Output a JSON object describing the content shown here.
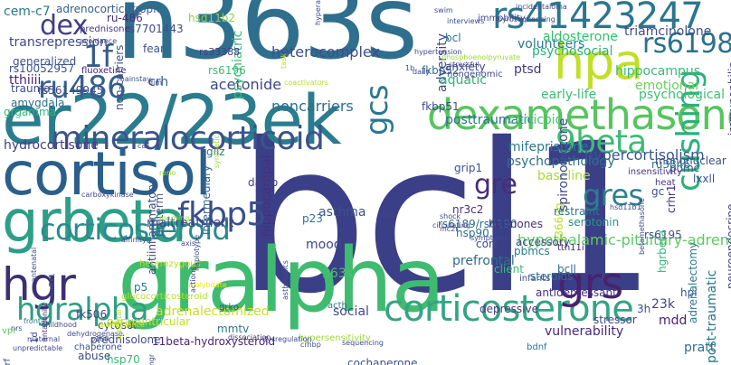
{
  "words": [
    {
      "text": "bcl1",
      "color": "#3b3f87"
    },
    {
      "text": "n363s",
      "color": "#2f6f8e"
    },
    {
      "text": "er22/23ek",
      "color": "#2a7c8e"
    },
    {
      "text": "cortisol",
      "color": "#2b5f8b"
    },
    {
      "text": "gralpha",
      "color": "#3fbb6f"
    },
    {
      "text": "grbeta",
      "color": "#2d9f86"
    },
    {
      "text": "hpa",
      "color": "#c0df26"
    },
    {
      "text": "dexamethasone",
      "color": "#58c45f"
    },
    {
      "text": "rs41423247",
      "color": "#2a768e"
    },
    {
      "text": "corticosterone",
      "color": "#35a482"
    },
    {
      "text": "mineralocorticoid",
      "color": "#3b538b"
    },
    {
      "text": "corticosteroid",
      "color": "#2a8a8c"
    },
    {
      "text": "hgr",
      "color": "#3d2f74"
    },
    {
      "text": "grs",
      "color": "#47236e"
    },
    {
      "text": "fkbp5",
      "color": "#3a4f8a"
    },
    {
      "text": "ru486",
      "color": "#35608d"
    },
    {
      "text": "dex",
      "color": "#423f85"
    },
    {
      "text": "1f",
      "color": "#365c8d"
    },
    {
      "text": "hgralpha",
      "color": "#2e9e85"
    },
    {
      "text": "9beta",
      "color": "#3dbb74"
    },
    {
      "text": "gcs",
      "color": "#2a788e"
    },
    {
      "text": "gre",
      "color": "#472c7a"
    },
    {
      "text": "gres",
      "color": "#2a7f8e"
    },
    {
      "text": "cushing",
      "color": "#2ab17a"
    },
    {
      "text": "rs6198",
      "color": "#2c718e"
    },
    {
      "text": "adrenocorticotropic",
      "color": "#34608d"
    },
    {
      "text": "transrepression",
      "color": "#3e4a89"
    },
    {
      "text": "hydrocortisone",
      "color": "#433d84"
    },
    {
      "text": "heterocomplex",
      "color": "#3d4d8a"
    },
    {
      "text": "noncarriers",
      "color": "#2e6e8e"
    },
    {
      "text": "acetonide",
      "color": "#404588"
    },
    {
      "text": "hypercortisolism",
      "color": "#3a548c"
    },
    {
      "text": "hypothalamic-pituitary-adrenal",
      "color": "#5ec962"
    },
    {
      "text": "maltreatment",
      "color": "#3e4a89"
    },
    {
      "text": "aldosterone",
      "color": "#2ec26d"
    },
    {
      "text": "triamcinolone",
      "color": "#3d4e8a"
    },
    {
      "text": "psychosocial",
      "color": "#2bb07f"
    },
    {
      "text": "hippocampus",
      "color": "#3aba76"
    },
    {
      "text": "emotional",
      "color": "#6ccd5a"
    },
    {
      "text": "psychological",
      "color": "#40bd72"
    },
    {
      "text": "early-life",
      "color": "#3fbc73"
    },
    {
      "text": "psychopathology",
      "color": "#2e6f8e"
    },
    {
      "text": "mifepristone",
      "color": "#2a788e"
    },
    {
      "text": "posttraumatic",
      "color": "#2d718e"
    },
    {
      "text": "corticoid",
      "color": "#4cc26c"
    },
    {
      "text": "baseline",
      "color": "#a8db34"
    },
    {
      "text": "fkbp51",
      "color": "#3e4c8a"
    },
    {
      "text": "fkbp52",
      "color": "#2e6d8e"
    },
    {
      "text": "adversity",
      "color": "#414487"
    },
    {
      "text": "psychiatric",
      "color": "#3aba76"
    },
    {
      "text": "aquatic",
      "color": "#2eb37c"
    },
    {
      "text": "ptsd",
      "color": "#453781"
    },
    {
      "text": "volunteers",
      "color": "#2a778e"
    },
    {
      "text": "bcl",
      "color": "#2c728e"
    },
    {
      "text": "anxiety",
      "color": "#404688"
    },
    {
      "text": "rs7701443",
      "color": "#3e4c8a"
    },
    {
      "text": "hsd11b2",
      "color": "#83d34b"
    },
    {
      "text": "rs33388",
      "color": "#443b84"
    },
    {
      "text": "rs6196",
      "color": "#3fbc73"
    },
    {
      "text": "fear",
      "color": "#3b528b"
    },
    {
      "text": "crh",
      "color": "#365d8d"
    },
    {
      "text": "ru-486",
      "color": "#472a7a"
    },
    {
      "text": "rs10052957",
      "color": "#3a548c"
    },
    {
      "text": "tthiiii",
      "color": "#482677"
    },
    {
      "text": "rs56149945",
      "color": "#3e4989"
    },
    {
      "text": "amygdala",
      "color": "#2e6f8e"
    },
    {
      "text": "trauma",
      "color": "#3d4d8a"
    },
    {
      "text": "grgamma",
      "color": "#31b57b"
    },
    {
      "text": "generalized",
      "color": "#3b528b"
    },
    {
      "text": "cem-c7",
      "color": "#2a788e"
    },
    {
      "text": "prednisone",
      "color": "#443983"
    },
    {
      "text": "fluoxetine",
      "color": "#482475"
    },
    {
      "text": "non-carriers",
      "color": "#3b518b"
    },
    {
      "text": "heat",
      "color": "#46317e"
    },
    {
      "text": "gilz",
      "color": "#2a7b8e"
    },
    {
      "text": "grip1",
      "color": "#3b518b"
    },
    {
      "text": "nr3c2",
      "color": "#472e7c"
    },
    {
      "text": "rs6189/rs6190",
      "color": "#2e6d8e"
    },
    {
      "text": "hsp90",
      "color": "#2e6f8e"
    },
    {
      "text": "a3669g",
      "color": "#bade28"
    },
    {
      "text": "spironolactone",
      "color": "#3e4a89"
    },
    {
      "text": "serotonin",
      "color": "#1f988b"
    },
    {
      "text": "restraint",
      "color": "#2b758e"
    },
    {
      "text": "rs6195",
      "color": "#3d4e8a"
    },
    {
      "text": "crhr1",
      "color": "#46307e"
    },
    {
      "text": "pomc",
      "color": "#3b528b"
    },
    {
      "text": "gc",
      "color": "#3d4e8a"
    },
    {
      "text": "ru3846",
      "color": "#2a768e"
    },
    {
      "text": "mononuclear",
      "color": "#3b518b"
    },
    {
      "text": "lxxll",
      "color": "#3a548c"
    },
    {
      "text": "insensitivity",
      "color": "#443983"
    },
    {
      "text": "immunophilin",
      "color": "#433e85"
    },
    {
      "text": "asthma",
      "color": "#3b518b"
    },
    {
      "text": "hippocampal",
      "color": "#472f7d"
    },
    {
      "text": "intermediary",
      "color": "#34618d"
    },
    {
      "text": "preterm",
      "color": "#3a548c"
    },
    {
      "text": "antiinflammatory",
      "color": "#3e4a89"
    },
    {
      "text": "danio",
      "color": "#433e85"
    },
    {
      "text": "p23",
      "color": "#2c728e"
    },
    {
      "text": "mood",
      "color": "#3f4788"
    },
    {
      "text": "hormones",
      "color": "#46327e"
    },
    {
      "text": "cort",
      "color": "#3e4c8a"
    },
    {
      "text": "accessory",
      "color": "#3e4989"
    },
    {
      "text": "pbmcs",
      "color": "#2a788e"
    },
    {
      "text": "client",
      "color": "#3aba76"
    },
    {
      "text": "bcll",
      "color": "#2e6e8e"
    },
    {
      "text": "tth11i",
      "color": "#482475"
    },
    {
      "text": "prefrontal",
      "color": "#2e6d8e"
    },
    {
      "text": "363s",
      "color": "#4ac16d"
    },
    {
      "text": "infants",
      "color": "#3b518b"
    },
    {
      "text": "steroids",
      "color": "#2e6d8e"
    },
    {
      "text": "antidepressant",
      "color": "#46307e"
    },
    {
      "text": "depressive",
      "color": "#453882"
    },
    {
      "text": "stressor",
      "color": "#3f4788"
    },
    {
      "text": "mdd",
      "color": "#482173"
    },
    {
      "text": "hpi",
      "color": "#3b528b"
    },
    {
      "text": "adrenalectomy",
      "color": "#2a788e"
    },
    {
      "text": "hgrbeta",
      "color": "#2db27d"
    },
    {
      "text": "23k",
      "color": "#3f4788"
    },
    {
      "text": "3h",
      "color": "#3b518b"
    },
    {
      "text": "pratt",
      "color": "#2e6d8e"
    },
    {
      "text": "post-traumatic",
      "color": "#2a788e"
    },
    {
      "text": "neuroendocrine",
      "color": "#3e4a89"
    },
    {
      "text": "vulnerability",
      "color": "#482979"
    },
    {
      "text": "bdnf",
      "color": "#2a768e"
    },
    {
      "text": "cochaperone",
      "color": "#3b528b"
    },
    {
      "text": "11beta-hydroxysteroid",
      "color": "#482475"
    },
    {
      "text": "adrenalectomized",
      "color": "#c8e020"
    },
    {
      "text": "mmtv",
      "color": "#2a788e"
    },
    {
      "text": "grko",
      "color": "#3b518b"
    },
    {
      "text": "social",
      "color": "#3e4a89"
    },
    {
      "text": "acth",
      "color": "#2a768e"
    },
    {
      "text": "prednisolone",
      "color": "#3e4c8a"
    },
    {
      "text": "hsp70",
      "color": "#3aba76"
    },
    {
      "text": "cytosol",
      "color": "#3e4a89"
    },
    {
      "text": "fk506",
      "color": "#404588"
    },
    {
      "text": "paraventricular",
      "color": "#c0df26"
    },
    {
      "text": "abuse",
      "color": "#3e4989"
    },
    {
      "text": "crf",
      "color": "#3b518b"
    },
    {
      "text": "chaperone",
      "color": "#3b518b"
    },
    {
      "text": "vpr",
      "color": "#5ec962"
    },
    {
      "text": "1d",
      "color": "#3f4788"
    },
    {
      "text": "p5",
      "color": "#2a788e"
    },
    {
      "text": "heterozygous",
      "color": "#b5de2b"
    },
    {
      "text": "glucocorticosteroid",
      "color": "#b5de2b"
    },
    {
      "text": "hypersensitivity",
      "color": "#a0da39"
    },
    {
      "text": "adolescence",
      "color": "#bddf26"
    },
    {
      "text": "molybdate",
      "color": "#e7e419"
    },
    {
      "text": "asthmatics",
      "color": "#3e4a89"
    },
    {
      "text": "mgr",
      "color": "#3e4a89"
    },
    {
      "text": "dissociation",
      "color": "#46317e"
    },
    {
      "text": "crhbp",
      "color": "#3b528b"
    },
    {
      "text": "p160",
      "color": "#3e4a89"
    },
    {
      "text": "nrs",
      "color": "#3e4a89"
    },
    {
      "text": "childhood",
      "color": "#3e4a89"
    },
    {
      "text": "frontal",
      "color": "#2a788e"
    },
    {
      "text": "dehydrogenase",
      "color": "#3e4a89"
    },
    {
      "text": "unpredictable",
      "color": "#3e4a89"
    },
    {
      "text": "antagonist",
      "color": "#46317e"
    },
    {
      "text": "morning",
      "color": "#a0da39"
    },
    {
      "text": "prenatal",
      "color": "#b5de2b"
    },
    {
      "text": "affinity",
      "color": "#3e4a89"
    },
    {
      "text": "maternal",
      "color": "#3e4a89"
    },
    {
      "text": "antenatal",
      "color": "#3e4a89"
    },
    {
      "text": "dbd",
      "color": "#3e4a89"
    },
    {
      "text": "ser211",
      "color": "#3e4a89"
    },
    {
      "text": "axis",
      "color": "#3e4a89"
    },
    {
      "text": "rerio",
      "color": "#a0da39"
    },
    {
      "text": "carboxykinase",
      "color": "#3e4a89"
    },
    {
      "text": "ca1",
      "color": "#3e4a89"
    },
    {
      "text": "synthetic",
      "color": "#a0da39"
    },
    {
      "text": "mainstay",
      "color": "#3e4a89"
    },
    {
      "text": "dim",
      "color": "#3e4a89"
    },
    {
      "text": "task",
      "color": "#b5de2b"
    },
    {
      "text": "coactivators",
      "color": "#b5de2b"
    },
    {
      "text": "hypertension",
      "color": "#3e4a89"
    },
    {
      "text": "1b",
      "color": "#3e4a89"
    },
    {
      "text": "nongenomic",
      "color": "#3e4a89"
    },
    {
      "text": "phosphoenolpyruvate",
      "color": "#a0da39"
    },
    {
      "text": "daily",
      "color": "#3e4a89"
    },
    {
      "text": "stressful",
      "color": "#3e4a89"
    },
    {
      "text": "interviews",
      "color": "#3e4a89"
    },
    {
      "text": "immobility",
      "color": "#3e4a89"
    },
    {
      "text": "swim",
      "color": "#3e4a89"
    },
    {
      "text": "pyrosequencing",
      "color": "#3e4a89"
    },
    {
      "text": "incidentaloma",
      "color": "#3e4a89"
    },
    {
      "text": "hyperactivity",
      "color": "#3e4a89"
    },
    {
      "text": "avoidance",
      "color": "#3e4a89"
    },
    {
      "text": "haplotype",
      "color": "#3e4a89"
    },
    {
      "text": "actions",
      "color": "#3e4a89"
    },
    {
      "text": "care",
      "color": "#3e4a89"
    },
    {
      "text": "shock",
      "color": "#3e4a89"
    },
    {
      "text": "circulating",
      "color": "#3e4a89"
    },
    {
      "text": "mc2r",
      "color": "#3e4a89"
    },
    {
      "text": "symptoms",
      "color": "#3e4a89"
    },
    {
      "text": "betamethasone",
      "color": "#3e4a89"
    },
    {
      "text": "hsd11b1",
      "color": "#3e4a89"
    },
    {
      "text": "dysregulation",
      "color": "#3e4a89"
    },
    {
      "text": "sequencing",
      "color": "#3e4a89"
    }
  ]
}
